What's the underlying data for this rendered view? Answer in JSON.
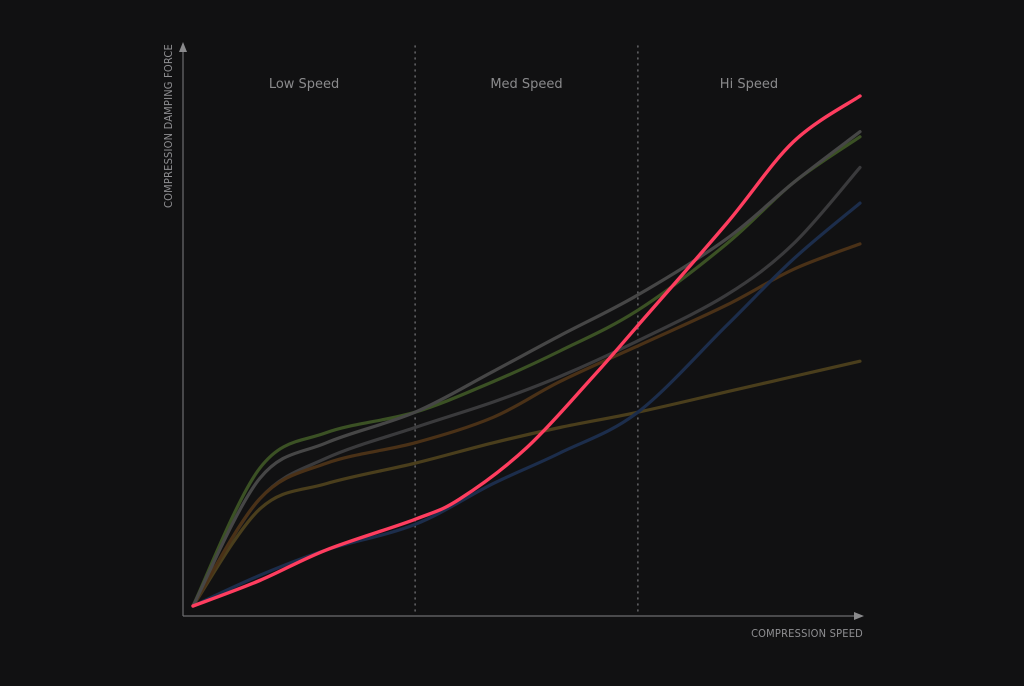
{
  "chart_data": {
    "type": "line",
    "xlabel": "COMPRESSION SPEED",
    "ylabel": "COMPRESSION DAMPING FORCE",
    "xlim": [
      0,
      100
    ],
    "ylim": [
      0,
      100
    ],
    "zones": [
      {
        "label": "Low Speed",
        "from": 0,
        "to": 33.3
      },
      {
        "label": "Med Speed",
        "from": 33.3,
        "to": 66.7
      },
      {
        "label": "Hi Speed",
        "from": 66.7,
        "to": 100
      }
    ],
    "series": [
      {
        "color": "#3a3a3c",
        "highlight": false,
        "points": [
          [
            0,
            0
          ],
          [
            10,
            21
          ],
          [
            20,
            29
          ],
          [
            33.3,
            35
          ],
          [
            45,
            40
          ],
          [
            55,
            45
          ],
          [
            66.7,
            52
          ],
          [
            80,
            61
          ],
          [
            90,
            71
          ],
          [
            100,
            86
          ]
        ]
      },
      {
        "color": "#4a3e1c",
        "highlight": false,
        "points": [
          [
            0,
            0
          ],
          [
            10,
            19
          ],
          [
            20,
            24
          ],
          [
            33.3,
            28
          ],
          [
            45,
            32
          ],
          [
            55,
            35
          ],
          [
            66.7,
            38
          ],
          [
            80,
            42
          ],
          [
            90,
            45
          ],
          [
            100,
            48
          ]
        ]
      },
      {
        "color": "#4a3117",
        "highlight": false,
        "points": [
          [
            0,
            0
          ],
          [
            10,
            21
          ],
          [
            20,
            28
          ],
          [
            33.3,
            32
          ],
          [
            45,
            37
          ],
          [
            55,
            44
          ],
          [
            66.7,
            51
          ],
          [
            80,
            59
          ],
          [
            90,
            66
          ],
          [
            100,
            71
          ]
        ]
      },
      {
        "color": "#1c2d4b",
        "highlight": false,
        "points": [
          [
            0,
            0
          ],
          [
            10,
            6
          ],
          [
            20,
            11
          ],
          [
            33.3,
            16
          ],
          [
            45,
            24
          ],
          [
            55,
            30
          ],
          [
            66.7,
            38
          ],
          [
            80,
            55
          ],
          [
            90,
            68
          ],
          [
            100,
            79
          ]
        ]
      },
      {
        "color": "#3b5124",
        "highlight": false,
        "points": [
          [
            0,
            0
          ],
          [
            10,
            27
          ],
          [
            20,
            34
          ],
          [
            33.3,
            38
          ],
          [
            45,
            44
          ],
          [
            55,
            50
          ],
          [
            66.7,
            58
          ],
          [
            80,
            71
          ],
          [
            90,
            83
          ],
          [
            100,
            92
          ]
        ]
      },
      {
        "color": "#464646",
        "highlight": false,
        "points": [
          [
            0,
            0
          ],
          [
            10,
            25
          ],
          [
            20,
            32
          ],
          [
            33.3,
            38
          ],
          [
            45,
            46
          ],
          [
            55,
            53
          ],
          [
            66.7,
            61
          ],
          [
            80,
            72
          ],
          [
            90,
            83
          ],
          [
            100,
            93
          ]
        ]
      },
      {
        "color": "#ff3d5f",
        "highlight": true,
        "points": [
          [
            0,
            0
          ],
          [
            10,
            5
          ],
          [
            20,
            11
          ],
          [
            33.3,
            17
          ],
          [
            40,
            21
          ],
          [
            50,
            31
          ],
          [
            60,
            45
          ],
          [
            66.7,
            55
          ],
          [
            80,
            75
          ],
          [
            90,
            91
          ],
          [
            100,
            100
          ]
        ]
      }
    ]
  }
}
